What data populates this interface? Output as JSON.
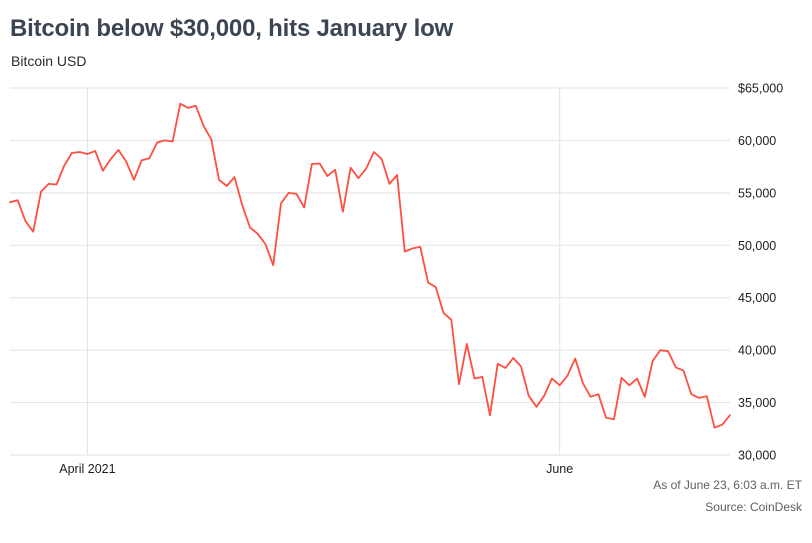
{
  "header": {
    "title": "Bitcoin below $30,000, hits January low",
    "subtitle": "Bitcoin USD"
  },
  "footer": {
    "as_of": "As of June 23, 6:03 a.m. ET",
    "source": "Source: CoinDesk"
  },
  "chart_data": {
    "type": "line",
    "title": "Bitcoin below $30,000, hits January low",
    "series_name": "Bitcoin USD",
    "line_color": "#ff4f40",
    "grid_color": "#e2e2e2",
    "grid": true,
    "legend": false,
    "ylim": [
      30000,
      65000
    ],
    "ytick_values": [
      65000,
      60000,
      55000,
      50000,
      45000,
      40000,
      35000,
      30000
    ],
    "ytick_labels": [
      "$65,000",
      "60,000",
      "55,000",
      "50,000",
      "45,000",
      "40,000",
      "35,000",
      "30,000"
    ],
    "xticks": [
      {
        "label": "April 2021",
        "index": 10
      },
      {
        "label": "June",
        "index": 71
      }
    ],
    "values": [
      54100,
      54300,
      52300,
      51300,
      55100,
      55850,
      55800,
      57600,
      58800,
      58900,
      58700,
      59000,
      57100,
      58200,
      59100,
      58000,
      56250,
      58100,
      58300,
      59800,
      60000,
      59900,
      63500,
      63100,
      63300,
      61400,
      60100,
      56250,
      55650,
      56500,
      53800,
      51700,
      51100,
      50100,
      48100,
      54000,
      55000,
      54900,
      53600,
      57750,
      57800,
      56600,
      57200,
      53200,
      57400,
      56400,
      57300,
      58900,
      58250,
      55850,
      56700,
      49400,
      49700,
      49850,
      46450,
      46000,
      43550,
      42900,
      36750,
      40600,
      37300,
      37450,
      33800,
      38700,
      38300,
      39250,
      38450,
      35650,
      34600,
      35650,
      37300,
      36650,
      37550,
      39200,
      36850,
      35550,
      35800,
      33550,
      33400,
      37350,
      36650,
      37300,
      35550,
      38950,
      40000,
      39900,
      38350,
      38050,
      35800,
      35450,
      35600,
      32600,
      32900,
      33800
    ]
  }
}
